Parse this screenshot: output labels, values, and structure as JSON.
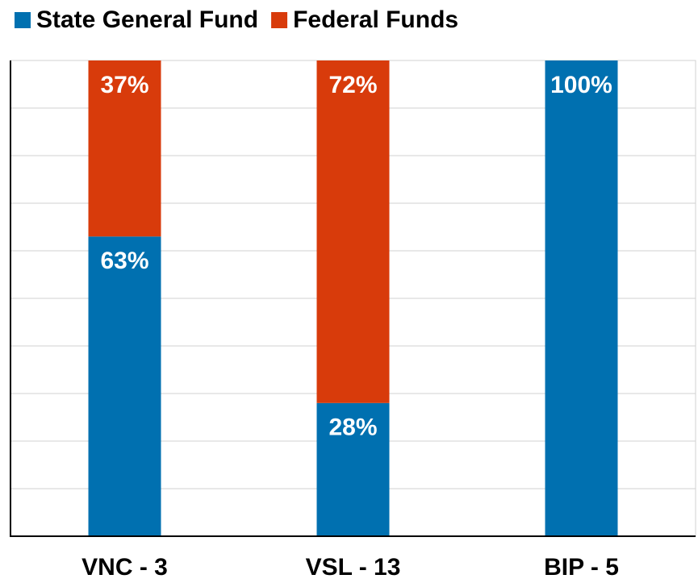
{
  "chart_data": {
    "type": "stacked_bar",
    "categories": [
      "VNC - 3",
      "VSL - 13",
      "BIP - 5"
    ],
    "series": [
      {
        "name": "State General Fund",
        "color": "#0070b0",
        "values": [
          63,
          28,
          100
        ],
        "value_labels": [
          "63%",
          "28%",
          "100%"
        ]
      },
      {
        "name": "Federal Funds",
        "color": "#d83b0b",
        "values": [
          37,
          72,
          0
        ],
        "value_labels": [
          "37%",
          "72%",
          null
        ]
      }
    ],
    "ylim": [
      0,
      100
    ],
    "yticks": [
      0,
      10,
      20,
      30,
      40,
      50,
      60,
      70,
      80,
      90,
      100
    ],
    "grid": true,
    "legend": "top-left"
  }
}
